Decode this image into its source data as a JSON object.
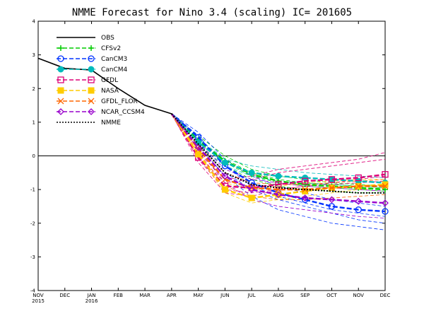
{
  "chart_data": {
    "type": "line",
    "title": "NMME Forecast for Nino 3.4 (scaling) IC= 201605",
    "xlabel": "",
    "ylabel": "",
    "ylim": [
      -4,
      4
    ],
    "yticks": [
      -4,
      -3,
      -2,
      -1,
      0,
      1,
      2,
      3,
      4
    ],
    "grid": false,
    "legend_position": "top-left",
    "x_tick_labels": [
      "NOV",
      "DEC",
      "JAN",
      "FEB",
      "MAR",
      "APR",
      "MAY",
      "JUN",
      "JUL",
      "AUG",
      "SEP",
      "OCT",
      "NOV",
      "DEC"
    ],
    "x_tick_sublabels": {
      "NOV": "2015",
      "JAN": "2016"
    },
    "obs": {
      "name": "OBS",
      "color": "#000000",
      "x": [
        0,
        1,
        2,
        3,
        4,
        5
      ],
      "values": [
        2.9,
        2.6,
        2.55,
        2.0,
        1.5,
        1.25
      ]
    },
    "forecast_months": [
      5,
      6,
      7,
      8,
      9,
      10,
      11,
      12,
      13
    ],
    "series": [
      {
        "name": "CFSv2",
        "color": "#00cc00",
        "marker": "plus",
        "ensemble_mean": [
          1.25,
          0.45,
          -0.15,
          -0.55,
          -0.75,
          -0.85,
          -0.9,
          -0.95,
          -1.0
        ],
        "members": [
          [
            1.25,
            0.6,
            0.0,
            -0.4,
            -0.6,
            -0.7,
            -0.8,
            -0.85,
            -0.9
          ],
          [
            1.25,
            0.5,
            -0.1,
            -0.5,
            -0.7,
            -0.8,
            -0.85,
            -0.9,
            -0.95
          ],
          [
            1.25,
            0.4,
            -0.2,
            -0.6,
            -0.8,
            -0.9,
            -0.95,
            -1.0,
            -1.05
          ],
          [
            1.25,
            0.3,
            -0.3,
            -0.7,
            -0.9,
            -1.0,
            -1.05,
            -1.1,
            -1.1
          ]
        ]
      },
      {
        "name": "CanCM3",
        "color": "#0033ff",
        "marker": "circle-open",
        "ensemble_mean": [
          1.25,
          0.55,
          -0.3,
          -0.8,
          -1.1,
          -1.3,
          -1.5,
          -1.6,
          -1.65
        ],
        "members": [
          [
            1.25,
            0.3,
            -0.6,
            -1.2,
            -1.6,
            -1.8,
            -2.0,
            -2.1,
            -2.2
          ],
          [
            1.25,
            0.6,
            -0.3,
            -0.9,
            -1.2,
            -1.4,
            -1.6,
            -1.7,
            -1.8
          ],
          [
            1.25,
            0.4,
            -0.5,
            -1.0,
            -1.3,
            -1.5,
            -1.7,
            -1.9,
            -2.0
          ],
          [
            1.25,
            0.7,
            -0.1,
            -0.6,
            -0.9,
            -1.1,
            -1.3,
            -1.4,
            -1.5
          ]
        ]
      },
      {
        "name": "CanCM4",
        "color": "#00bbbb",
        "marker": "circle-filled",
        "ensemble_mean": [
          1.25,
          0.4,
          -0.2,
          -0.5,
          -0.6,
          -0.65,
          -0.7,
          -0.75,
          -0.8
        ],
        "members": [
          [
            1.25,
            0.5,
            -0.1,
            -0.3,
            -0.4,
            -0.5,
            -0.55,
            -0.6,
            -0.65
          ],
          [
            1.25,
            0.3,
            -0.3,
            -0.6,
            -0.75,
            -0.8,
            -0.85,
            -0.9,
            -0.95
          ]
        ]
      },
      {
        "name": "GFDL",
        "color": "#dd0077",
        "marker": "square-open",
        "ensemble_mean": [
          1.25,
          -0.05,
          -0.9,
          -0.95,
          -0.85,
          -0.75,
          -0.7,
          -0.65,
          -0.55
        ],
        "members": [
          [
            1.25,
            -0.2,
            -1.1,
            -1.2,
            -1.0,
            -0.9,
            -0.8,
            -0.7,
            -0.6
          ],
          [
            1.25,
            0.1,
            -0.7,
            -0.6,
            -0.4,
            -0.3,
            -0.2,
            -0.1,
            0.1
          ],
          [
            1.25,
            0.0,
            -0.8,
            -0.7,
            -0.5,
            -0.4,
            -0.3,
            -0.2,
            -0.1
          ],
          [
            1.25,
            -0.1,
            -1.0,
            -1.1,
            -1.0,
            -0.9,
            -0.85,
            -0.8,
            -0.75
          ]
        ]
      },
      {
        "name": "NASA",
        "color": "#ffcc00",
        "marker": "square-filled",
        "ensemble_mean": [
          1.25,
          0.05,
          -1.0,
          -1.25,
          -1.15,
          -1.05,
          -0.95,
          -0.9,
          -0.85
        ],
        "members": [
          [
            1.25,
            0.0,
            -1.1,
            -1.4,
            -1.3,
            -1.2,
            -1.1,
            -1.0,
            -0.95
          ],
          [
            1.25,
            0.2,
            -0.8,
            -1.0,
            -0.9,
            -0.8,
            -0.75,
            -0.7,
            -0.7
          ]
        ]
      },
      {
        "name": "GFDL_FLOR",
        "color": "#ff6600",
        "marker": "cross",
        "ensemble_mean": [
          1.25,
          0.2,
          -0.7,
          -0.95,
          -1.0,
          -1.0,
          -0.95,
          -0.9,
          -0.9
        ],
        "members": [
          [
            1.25,
            0.1,
            -0.9,
            -1.2,
            -1.3,
            -1.3,
            -1.25,
            -1.2,
            -1.15
          ],
          [
            1.25,
            0.3,
            -0.5,
            -0.8,
            -0.85,
            -0.85,
            -0.8,
            -0.75,
            -0.7
          ]
        ]
      },
      {
        "name": "NCAR_CCSM4",
        "color": "#9900cc",
        "marker": "diamond-open",
        "ensemble_mean": [
          1.25,
          0.25,
          -0.6,
          -1.0,
          -1.15,
          -1.25,
          -1.3,
          -1.35,
          -1.4
        ],
        "members": [
          [
            1.25,
            0.2,
            -0.8,
            -1.3,
            -1.5,
            -1.6,
            -1.7,
            -1.8,
            -1.85
          ],
          [
            1.25,
            0.4,
            -0.4,
            -0.7,
            -0.8,
            -0.9,
            -0.95,
            -1.0,
            -1.05
          ]
        ]
      }
    ],
    "nmme": {
      "name": "NMME",
      "color": "#000000",
      "dash": "dotted",
      "values": [
        1.25,
        0.35,
        -0.5,
        -0.85,
        -0.95,
        -1.0,
        -1.05,
        -1.1,
        -1.1
      ]
    },
    "legend": [
      "OBS",
      "CFSv2",
      "CanCM3",
      "CanCM4",
      "GFDL",
      "NASA",
      "GFDL_FLOR",
      "NCAR_CCSM4",
      "NMME"
    ]
  }
}
